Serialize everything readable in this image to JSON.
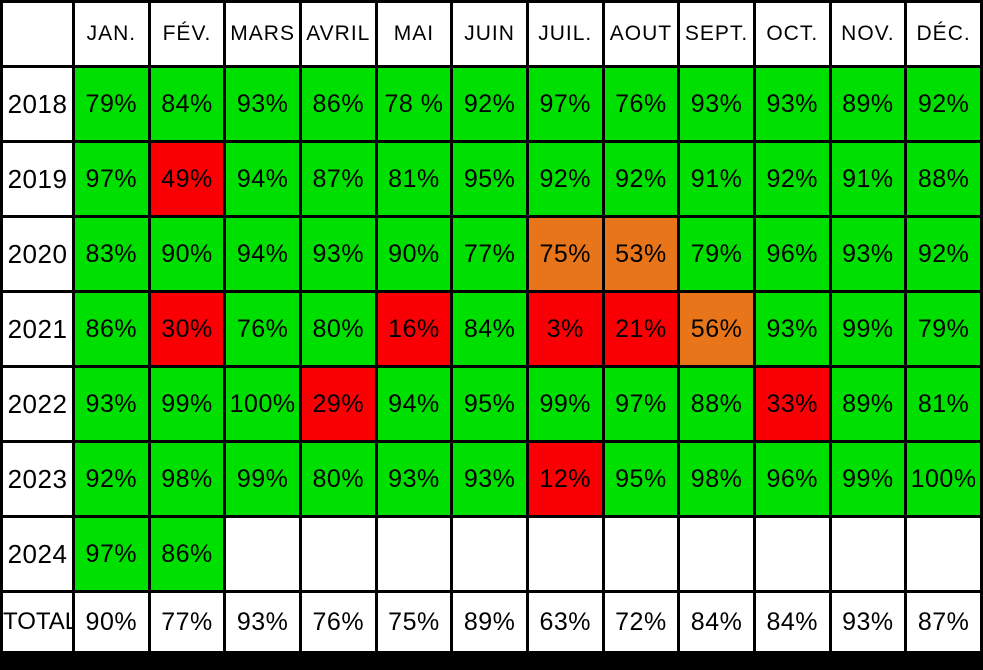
{
  "table": {
    "corner_label": "",
    "months": [
      "JAN.",
      "FÉV.",
      "MARS",
      "AVRIL",
      "MAI",
      "JUIN",
      "JUIL.",
      "AOUT",
      "SEPT.",
      "OCT.",
      "NOV.",
      "DÉC."
    ],
    "colors": {
      "green": "#00e000",
      "red": "#fa0005",
      "orange": "#e8751a",
      "white": "#ffffff"
    },
    "rows": [
      {
        "label": "2018",
        "cells": [
          {
            "t": "79%",
            "c": "green"
          },
          {
            "t": "84%",
            "c": "green"
          },
          {
            "t": "93%",
            "c": "green"
          },
          {
            "t": "86%",
            "c": "green"
          },
          {
            "t": "78 %",
            "c": "green"
          },
          {
            "t": "92%",
            "c": "green"
          },
          {
            "t": "97%",
            "c": "green"
          },
          {
            "t": "76%",
            "c": "green"
          },
          {
            "t": "93%",
            "c": "green"
          },
          {
            "t": "93%",
            "c": "green"
          },
          {
            "t": "89%",
            "c": "green"
          },
          {
            "t": "92%",
            "c": "green"
          }
        ]
      },
      {
        "label": "2019",
        "cells": [
          {
            "t": "97%",
            "c": "green"
          },
          {
            "t": "49%",
            "c": "red"
          },
          {
            "t": "94%",
            "c": "green"
          },
          {
            "t": "87%",
            "c": "green"
          },
          {
            "t": "81%",
            "c": "green"
          },
          {
            "t": "95%",
            "c": "green"
          },
          {
            "t": "92%",
            "c": "green"
          },
          {
            "t": "92%",
            "c": "green"
          },
          {
            "t": "91%",
            "c": "green"
          },
          {
            "t": "92%",
            "c": "green"
          },
          {
            "t": "91%",
            "c": "green"
          },
          {
            "t": "88%",
            "c": "green"
          }
        ]
      },
      {
        "label": "2020",
        "cells": [
          {
            "t": "83%",
            "c": "green"
          },
          {
            "t": "90%",
            "c": "green"
          },
          {
            "t": "94%",
            "c": "green"
          },
          {
            "t": "93%",
            "c": "green"
          },
          {
            "t": "90%",
            "c": "green"
          },
          {
            "t": "77%",
            "c": "green"
          },
          {
            "t": "75%",
            "c": "orange"
          },
          {
            "t": "53%",
            "c": "orange"
          },
          {
            "t": "79%",
            "c": "green"
          },
          {
            "t": "96%",
            "c": "green"
          },
          {
            "t": "93%",
            "c": "green"
          },
          {
            "t": "92%",
            "c": "green"
          }
        ]
      },
      {
        "label": "2021",
        "cells": [
          {
            "t": "86%",
            "c": "green"
          },
          {
            "t": "30%",
            "c": "red"
          },
          {
            "t": "76%",
            "c": "green"
          },
          {
            "t": "80%",
            "c": "green"
          },
          {
            "t": "16%",
            "c": "red"
          },
          {
            "t": "84%",
            "c": "green"
          },
          {
            "t": "3%",
            "c": "red"
          },
          {
            "t": "21%",
            "c": "red"
          },
          {
            "t": "56%",
            "c": "orange"
          },
          {
            "t": "93%",
            "c": "green"
          },
          {
            "t": "99%",
            "c": "green"
          },
          {
            "t": "79%",
            "c": "green"
          }
        ]
      },
      {
        "label": "2022",
        "cells": [
          {
            "t": "93%",
            "c": "green"
          },
          {
            "t": "99%",
            "c": "green"
          },
          {
            "t": "100%",
            "c": "green"
          },
          {
            "t": "29%",
            "c": "red"
          },
          {
            "t": "94%",
            "c": "green"
          },
          {
            "t": "95%",
            "c": "green"
          },
          {
            "t": "99%",
            "c": "green"
          },
          {
            "t": "97%",
            "c": "green"
          },
          {
            "t": "88%",
            "c": "green"
          },
          {
            "t": "33%",
            "c": "red"
          },
          {
            "t": "89%",
            "c": "green"
          },
          {
            "t": "81%",
            "c": "green"
          }
        ]
      },
      {
        "label": "2023",
        "cells": [
          {
            "t": "92%",
            "c": "green"
          },
          {
            "t": "98%",
            "c": "green"
          },
          {
            "t": "99%",
            "c": "green"
          },
          {
            "t": "80%",
            "c": "green"
          },
          {
            "t": "93%",
            "c": "green"
          },
          {
            "t": "93%",
            "c": "green"
          },
          {
            "t": "12%",
            "c": "red"
          },
          {
            "t": "95%",
            "c": "green"
          },
          {
            "t": "98%",
            "c": "green"
          },
          {
            "t": "96%",
            "c": "green"
          },
          {
            "t": "99%",
            "c": "green"
          },
          {
            "t": "100%",
            "c": "green"
          }
        ]
      },
      {
        "label": "2024",
        "cells": [
          {
            "t": "97%",
            "c": "green"
          },
          {
            "t": "86%",
            "c": "green"
          },
          {
            "t": "",
            "c": "white"
          },
          {
            "t": "",
            "c": "white"
          },
          {
            "t": "",
            "c": "white"
          },
          {
            "t": "",
            "c": "white"
          },
          {
            "t": "",
            "c": "white"
          },
          {
            "t": "",
            "c": "white"
          },
          {
            "t": "",
            "c": "white"
          },
          {
            "t": "",
            "c": "white"
          },
          {
            "t": "",
            "c": "white"
          },
          {
            "t": "",
            "c": "white"
          }
        ]
      },
      {
        "label": "TOTAL",
        "cells": [
          {
            "t": "90%",
            "c": "white"
          },
          {
            "t": "77%",
            "c": "white"
          },
          {
            "t": "93%",
            "c": "white"
          },
          {
            "t": "76%",
            "c": "white"
          },
          {
            "t": "75%",
            "c": "white"
          },
          {
            "t": "89%",
            "c": "white"
          },
          {
            "t": "63%",
            "c": "white"
          },
          {
            "t": "72%",
            "c": "white"
          },
          {
            "t": "84%",
            "c": "white"
          },
          {
            "t": "84%",
            "c": "white"
          },
          {
            "t": "93%",
            "c": "white"
          },
          {
            "t": "87%",
            "c": "white"
          }
        ]
      }
    ]
  },
  "chart_data": {
    "type": "heatmap",
    "columns": [
      "JAN.",
      "FÉV.",
      "MARS",
      "AVRIL",
      "MAI",
      "JUIN",
      "JUIL.",
      "AOUT",
      "SEPT.",
      "OCT.",
      "NOV.",
      "DÉC."
    ],
    "rows": [
      "2018",
      "2019",
      "2020",
      "2021",
      "2022",
      "2023",
      "2024",
      "TOTAL"
    ],
    "units": "%",
    "values": [
      [
        79,
        84,
        93,
        86,
        78,
        92,
        97,
        76,
        93,
        93,
        89,
        92
      ],
      [
        97,
        49,
        94,
        87,
        81,
        95,
        92,
        92,
        91,
        92,
        91,
        88
      ],
      [
        83,
        90,
        94,
        93,
        90,
        77,
        75,
        53,
        79,
        96,
        93,
        92
      ],
      [
        86,
        30,
        76,
        80,
        16,
        84,
        3,
        21,
        56,
        93,
        99,
        79
      ],
      [
        93,
        99,
        100,
        29,
        94,
        95,
        99,
        97,
        88,
        33,
        89,
        81
      ],
      [
        92,
        98,
        99,
        80,
        93,
        93,
        12,
        95,
        98,
        96,
        99,
        100
      ],
      [
        97,
        86,
        null,
        null,
        null,
        null,
        null,
        null,
        null,
        null,
        null,
        null
      ],
      [
        90,
        77,
        93,
        76,
        75,
        89,
        63,
        72,
        84,
        84,
        93,
        87
      ]
    ],
    "cell_colors": {
      "green_hex": "#00e000",
      "orange_hex": "#e8751a",
      "red_hex": "#fa0005",
      "total_and_empty_hex": "#ffffff"
    }
  }
}
